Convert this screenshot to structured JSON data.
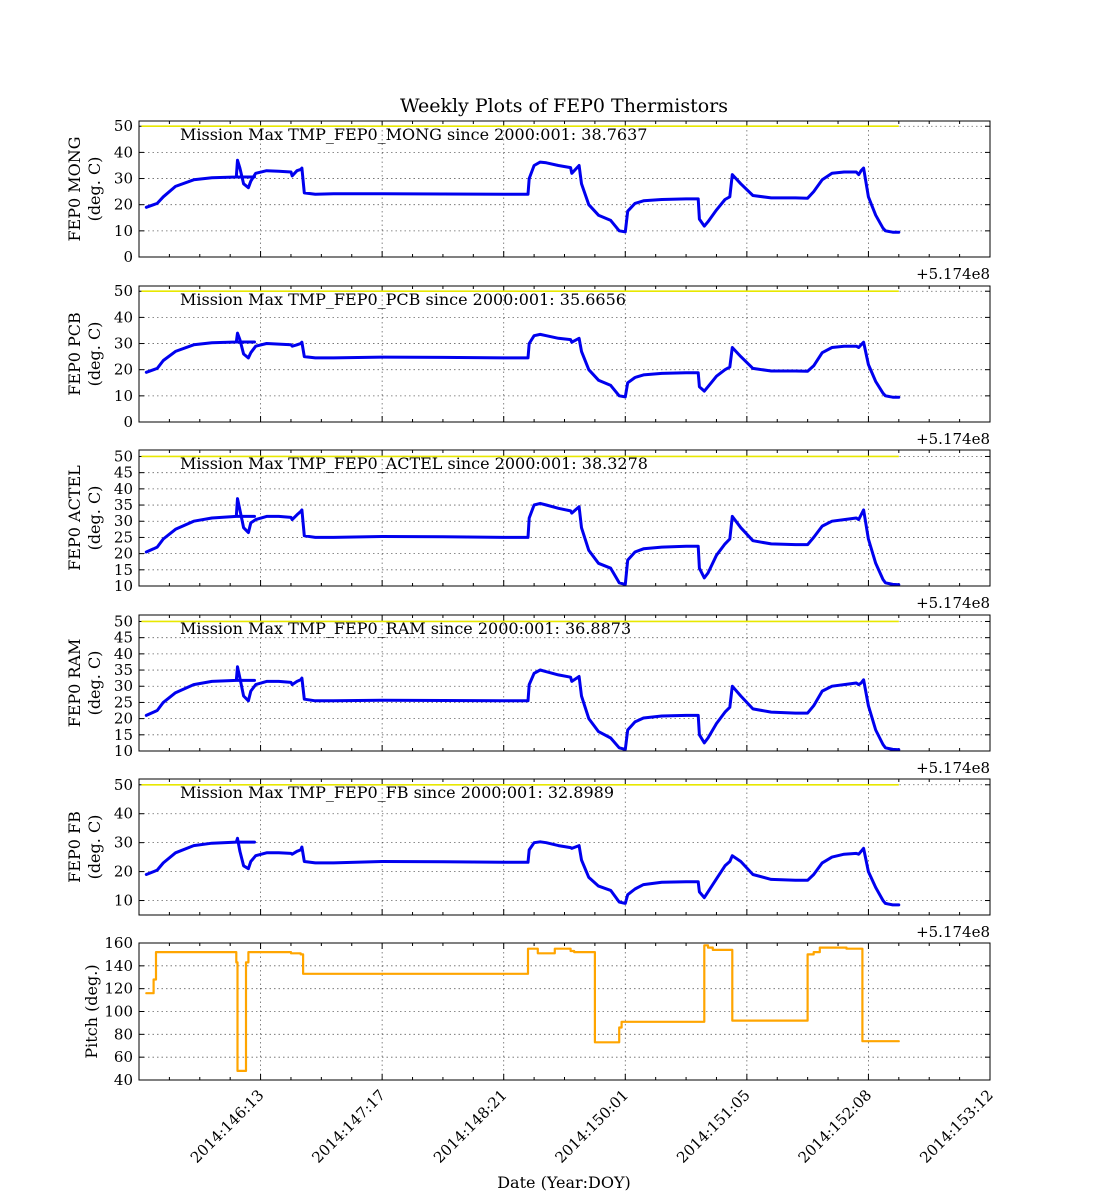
{
  "figure": {
    "title": "Weekly Plots of FEP0 Thermistors",
    "xlabel": "Date (Year:DOY)",
    "x_offset_label": "+5.174e8",
    "xlim": [
      0,
      7
    ],
    "x_tick_values": [
      1,
      2,
      3,
      4,
      5,
      6,
      7
    ],
    "x_tick_labels": [
      "2014:146:13",
      "2014:147:17",
      "2014:148:21",
      "2014:150:01",
      "2014:151:05",
      "2014:152:08",
      "2014:153:12"
    ],
    "colors": {
      "temperature": "#0000ee",
      "pitch": "#ffa500",
      "max_line": "#e8e800"
    }
  },
  "chart_data": [
    {
      "type": "line",
      "ylabel": [
        "FEP0 MONG",
        "(deg. C)"
      ],
      "ylim": [
        0,
        52
      ],
      "yticks": [
        0,
        10,
        20,
        30,
        40,
        50
      ],
      "annotation": "Mission Max TMP_FEP0_MONG since 2000:001: 38.7637",
      "max_line": 50,
      "series": [
        {
          "x": [
            0.06,
            0.12,
            0.15,
            0.2,
            0.3,
            0.45,
            0.6,
            0.8,
            0.95,
            0.8,
            0.81,
            0.83,
            0.86,
            0.9,
            0.92,
            0.96,
            1.05,
            1.15,
            1.25,
            1.26,
            1.3,
            1.33,
            1.34,
            1.36,
            1.45,
            1.6,
            2.0,
            2.5,
            3.0,
            3.2,
            3.21,
            3.25,
            3.3,
            3.35,
            3.45,
            3.55,
            3.56,
            3.62,
            3.64,
            3.7,
            3.78,
            3.88,
            3.95,
            4.0,
            4.02,
            4.08,
            4.15,
            4.3,
            4.5,
            4.6,
            4.61,
            4.65,
            4.68,
            4.75,
            4.82,
            4.86,
            4.88,
            4.95,
            5.05,
            5.2,
            5.4,
            5.5,
            5.55,
            5.62,
            5.7,
            5.8,
            5.9,
            5.92,
            5.94,
            5.96,
            6.0,
            6.06,
            6.12,
            6.14,
            6.2,
            6.25
          ],
          "values": [
            19,
            20,
            20.5,
            23,
            27,
            29.5,
            30.3,
            30.6,
            30.6,
            30.6,
            37,
            34,
            28,
            26.5,
            29,
            32,
            33,
            32.8,
            32.5,
            31,
            33,
            33.5,
            34,
            24.5,
            24,
            24.2,
            24.2,
            24.1,
            24,
            24,
            30,
            35,
            36.3,
            36,
            35,
            34.2,
            32,
            35,
            28,
            20,
            16,
            14,
            10,
            9.6,
            17.5,
            20.5,
            21.5,
            22,
            22.2,
            22.2,
            14.5,
            11.8,
            13.5,
            18,
            22,
            23,
            31.5,
            28,
            23.5,
            22.6,
            22.6,
            22.5,
            25,
            29.5,
            32,
            32.5,
            32.5,
            31.5,
            33,
            34,
            23,
            16,
            11,
            10,
            9.5,
            9.5
          ]
        }
      ]
    },
    {
      "type": "line",
      "ylabel": [
        "FEP0 PCB",
        "(deg. C)"
      ],
      "ylim": [
        0,
        52
      ],
      "yticks": [
        0,
        10,
        20,
        30,
        40,
        50
      ],
      "annotation": "Mission Max TMP_FEP0_PCB since 2000:001: 35.6656",
      "max_line": 50,
      "series": [
        {
          "x": [
            0.06,
            0.12,
            0.15,
            0.2,
            0.3,
            0.45,
            0.6,
            0.8,
            0.95,
            0.8,
            0.81,
            0.83,
            0.86,
            0.9,
            0.92,
            0.96,
            1.05,
            1.15,
            1.25,
            1.26,
            1.3,
            1.33,
            1.34,
            1.36,
            1.45,
            1.6,
            2.0,
            2.5,
            3.0,
            3.2,
            3.21,
            3.25,
            3.3,
            3.35,
            3.45,
            3.55,
            3.56,
            3.62,
            3.64,
            3.7,
            3.78,
            3.88,
            3.95,
            4.0,
            4.02,
            4.08,
            4.15,
            4.3,
            4.5,
            4.6,
            4.61,
            4.65,
            4.68,
            4.75,
            4.82,
            4.86,
            4.88,
            4.95,
            5.05,
            5.2,
            5.4,
            5.5,
            5.55,
            5.62,
            5.7,
            5.8,
            5.9,
            5.92,
            5.94,
            5.96,
            6.0,
            6.06,
            6.12,
            6.14,
            6.2,
            6.25
          ],
          "values": [
            19,
            20,
            20.5,
            23.5,
            27,
            29.5,
            30.3,
            30.6,
            30.6,
            30.6,
            34,
            31.5,
            26,
            24.5,
            26.5,
            29,
            30,
            29.8,
            29.5,
            29,
            29.5,
            30,
            30.5,
            25,
            24.5,
            24.5,
            24.8,
            24.7,
            24.5,
            24.5,
            30,
            33,
            33.5,
            33,
            32,
            31.5,
            30.5,
            32,
            27,
            20,
            16,
            14,
            10,
            9.6,
            15,
            17,
            18,
            18.6,
            18.8,
            18.8,
            13.5,
            11.8,
            13.5,
            17.5,
            20,
            21,
            28.5,
            25,
            20.5,
            19.5,
            19.5,
            19.4,
            21.5,
            26.5,
            28.5,
            29,
            29,
            28.5,
            29.5,
            30.5,
            22,
            15.5,
            11,
            10,
            9.5,
            9.5
          ]
        }
      ]
    },
    {
      "type": "line",
      "ylabel": [
        "FEP0 ACTEL",
        "(deg. C)"
      ],
      "ylim": [
        10,
        52
      ],
      "yticks": [
        10,
        15,
        20,
        25,
        30,
        35,
        40,
        45,
        50
      ],
      "annotation": "Mission Max TMP_FEP0_ACTEL since 2000:001: 38.3278",
      "max_line": 50,
      "series": [
        {
          "x": [
            0.06,
            0.12,
            0.15,
            0.2,
            0.3,
            0.45,
            0.6,
            0.8,
            0.95,
            0.8,
            0.81,
            0.83,
            0.86,
            0.9,
            0.92,
            0.96,
            1.05,
            1.15,
            1.25,
            1.26,
            1.3,
            1.33,
            1.34,
            1.36,
            1.45,
            1.6,
            2.0,
            2.5,
            3.0,
            3.2,
            3.21,
            3.25,
            3.3,
            3.35,
            3.45,
            3.55,
            3.56,
            3.62,
            3.64,
            3.7,
            3.78,
            3.88,
            3.95,
            4.0,
            4.02,
            4.08,
            4.15,
            4.3,
            4.5,
            4.6,
            4.61,
            4.65,
            4.68,
            4.75,
            4.82,
            4.86,
            4.88,
            4.95,
            5.05,
            5.2,
            5.4,
            5.5,
            5.55,
            5.62,
            5.7,
            5.8,
            5.9,
            5.92,
            5.94,
            5.96,
            6.0,
            6.06,
            6.12,
            6.14,
            6.2,
            6.25
          ],
          "values": [
            20.5,
            21.5,
            22,
            24.5,
            27.5,
            30,
            31,
            31.5,
            31.5,
            31.5,
            37,
            33.5,
            28,
            26.5,
            29.5,
            30.5,
            31.5,
            31.5,
            31.2,
            30.5,
            32,
            33,
            33.5,
            25.5,
            25,
            25,
            25.3,
            25.2,
            25,
            25,
            31,
            35,
            35.5,
            35,
            34,
            33.2,
            32.5,
            34.5,
            28,
            21,
            17,
            15.5,
            11,
            10.5,
            18,
            20.5,
            21.5,
            22,
            22.3,
            22.3,
            15.5,
            12.5,
            14,
            19.5,
            23,
            24.5,
            31.5,
            28,
            24,
            23,
            22.8,
            22.8,
            25,
            28.5,
            30,
            30.5,
            31,
            30.5,
            32,
            33.5,
            24.5,
            17,
            12,
            11,
            10.5,
            10.4
          ]
        }
      ]
    },
    {
      "type": "line",
      "ylabel": [
        "FEP0 RAM",
        "(deg. C)"
      ],
      "ylim": [
        10,
        52
      ],
      "yticks": [
        10,
        15,
        20,
        25,
        30,
        35,
        40,
        45,
        50
      ],
      "annotation": "Mission Max TMP_FEP0_RAM since 2000:001: 36.8873",
      "max_line": 50,
      "series": [
        {
          "x": [
            0.06,
            0.12,
            0.15,
            0.2,
            0.3,
            0.45,
            0.6,
            0.8,
            0.95,
            0.8,
            0.81,
            0.83,
            0.86,
            0.9,
            0.92,
            0.96,
            1.05,
            1.15,
            1.25,
            1.26,
            1.3,
            1.33,
            1.34,
            1.36,
            1.45,
            1.6,
            2.0,
            2.5,
            3.0,
            3.2,
            3.21,
            3.25,
            3.3,
            3.35,
            3.45,
            3.55,
            3.56,
            3.62,
            3.64,
            3.7,
            3.78,
            3.88,
            3.95,
            4.0,
            4.02,
            4.08,
            4.15,
            4.3,
            4.5,
            4.6,
            4.61,
            4.65,
            4.68,
            4.75,
            4.82,
            4.86,
            4.88,
            4.95,
            5.05,
            5.2,
            5.4,
            5.5,
            5.55,
            5.62,
            5.7,
            5.8,
            5.9,
            5.92,
            5.94,
            5.96,
            6.0,
            6.06,
            6.12,
            6.14,
            6.2,
            6.25
          ],
          "values": [
            21,
            22,
            22.5,
            25,
            28,
            30.5,
            31.5,
            31.8,
            31.8,
            31.8,
            36,
            32.5,
            27,
            25.5,
            28.5,
            30.5,
            31.5,
            31.5,
            31.2,
            30.5,
            31.5,
            32,
            32.5,
            26,
            25.5,
            25.5,
            25.7,
            25.6,
            25.5,
            25.5,
            30.5,
            34,
            35,
            34.5,
            33.5,
            32.8,
            31.5,
            33,
            27,
            20,
            16,
            14,
            11,
            10.5,
            16.5,
            19,
            20.2,
            20.8,
            21,
            21,
            15,
            12.5,
            14,
            18.5,
            22,
            23.5,
            30,
            27,
            23,
            22,
            21.7,
            21.7,
            24,
            28.5,
            30,
            30.5,
            31,
            30.5,
            31,
            32,
            24,
            16.5,
            12,
            11,
            10.5,
            10.4
          ]
        }
      ]
    },
    {
      "type": "line",
      "ylabel": [
        "FEP0 FB",
        "(deg. C)"
      ],
      "ylim": [
        5,
        52
      ],
      "yticks": [
        10,
        20,
        30,
        40,
        50
      ],
      "annotation": "Mission Max TMP_FEP0_FB since 2000:001: 32.8989",
      "max_line": 50,
      "series": [
        {
          "x": [
            0.06,
            0.12,
            0.15,
            0.2,
            0.3,
            0.45,
            0.6,
            0.8,
            0.95,
            0.8,
            0.81,
            0.83,
            0.86,
            0.9,
            0.92,
            0.96,
            1.05,
            1.15,
            1.25,
            1.26,
            1.3,
            1.33,
            1.34,
            1.36,
            1.45,
            1.6,
            2.0,
            2.5,
            3.0,
            3.2,
            3.21,
            3.25,
            3.3,
            3.35,
            3.45,
            3.55,
            3.56,
            3.62,
            3.64,
            3.7,
            3.78,
            3.88,
            3.95,
            4.0,
            4.02,
            4.08,
            4.15,
            4.3,
            4.5,
            4.6,
            4.61,
            4.65,
            4.68,
            4.75,
            4.82,
            4.86,
            4.88,
            4.95,
            5.05,
            5.2,
            5.4,
            5.5,
            5.55,
            5.62,
            5.7,
            5.8,
            5.9,
            5.92,
            5.94,
            5.96,
            6.0,
            6.06,
            6.12,
            6.14,
            6.2,
            6.25
          ],
          "values": [
            19,
            20,
            20.5,
            23,
            26.5,
            29,
            29.8,
            30.2,
            30.2,
            30.2,
            31.5,
            27,
            22,
            21,
            23.5,
            25.5,
            26.5,
            26.5,
            26.3,
            26,
            27,
            27.5,
            28.5,
            23.5,
            23,
            23,
            23.5,
            23.4,
            23.2,
            23.2,
            27.5,
            30,
            30.3,
            30,
            29,
            28.3,
            28,
            29,
            24,
            18,
            15,
            13.5,
            9.5,
            9,
            12,
            14,
            15.5,
            16.3,
            16.5,
            16.5,
            13,
            11,
            13,
            17.5,
            22,
            23.5,
            25.5,
            23.5,
            19,
            17.3,
            17,
            17,
            19,
            23,
            25,
            26,
            26.3,
            26,
            27,
            28,
            20,
            14.5,
            10,
            9,
            8.5,
            8.5
          ]
        }
      ]
    },
    {
      "type": "line",
      "ylabel": [
        "Pitch (deg.)"
      ],
      "ylim": [
        40,
        160
      ],
      "yticks": [
        40,
        60,
        80,
        100,
        120,
        140,
        160
      ],
      "series": [
        {
          "x": [
            0.06,
            0.12,
            0.12,
            0.14,
            0.14,
            0.8,
            0.8,
            0.81,
            0.81,
            0.88,
            0.88,
            0.9,
            0.9,
            1.25,
            1.25,
            1.33,
            1.33,
            1.35,
            1.35,
            3.2,
            3.2,
            3.28,
            3.28,
            3.42,
            3.42,
            3.55,
            3.55,
            3.58,
            3.58,
            3.75,
            3.75,
            3.95,
            3.95,
            3.97,
            3.97,
            4.65,
            4.65,
            4.68,
            4.68,
            4.72,
            4.72,
            4.88,
            4.88,
            4.9,
            4.9,
            5.5,
            5.5,
            5.55,
            5.55,
            5.6,
            5.6,
            5.82,
            5.82,
            5.95,
            5.95,
            6.25
          ],
          "values": [
            116,
            116,
            128,
            128,
            152,
            152,
            143,
            143,
            48,
            48,
            143,
            143,
            152,
            152,
            151,
            151,
            150,
            150,
            133,
            133,
            155,
            155,
            151,
            151,
            155,
            155,
            153,
            153,
            152,
            152,
            73,
            73,
            86,
            86,
            91,
            91,
            158,
            158,
            156,
            156,
            154,
            154,
            92,
            92,
            92,
            92,
            150,
            150,
            152,
            152,
            156,
            156,
            155,
            155,
            74,
            74
          ]
        }
      ]
    }
  ]
}
